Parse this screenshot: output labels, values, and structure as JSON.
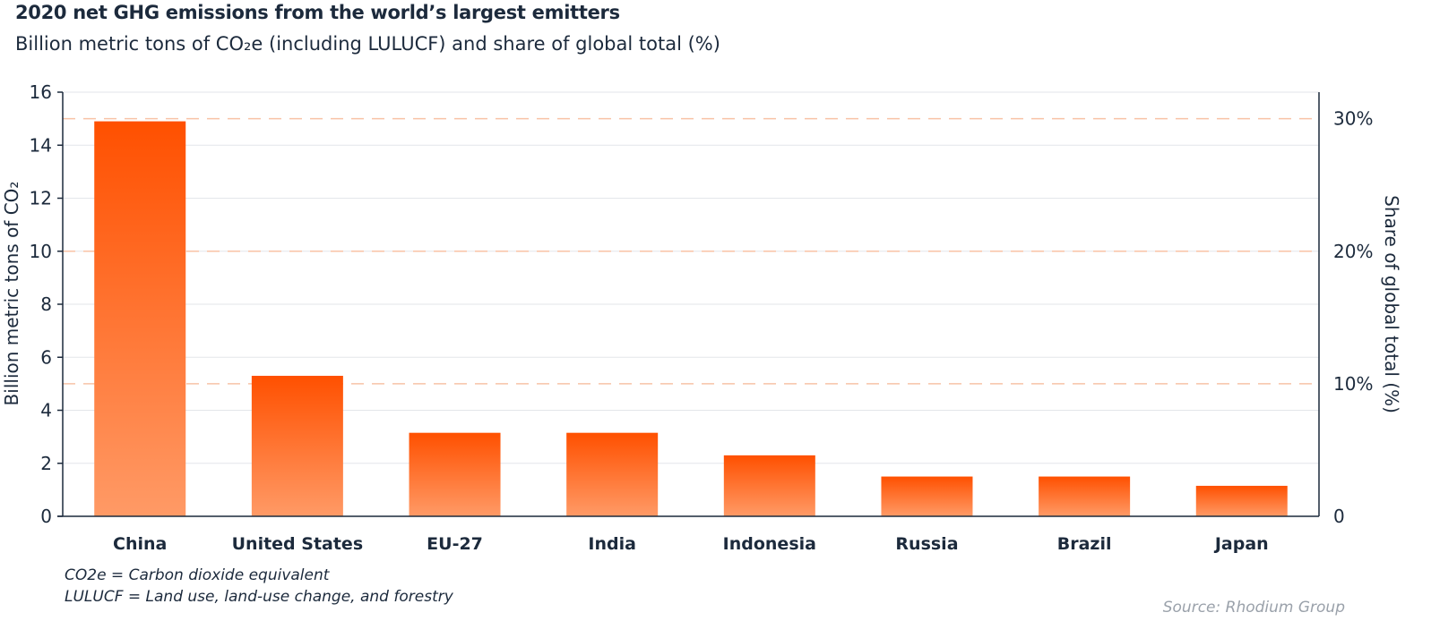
{
  "header": {
    "title": "2020 net GHG emissions from the world’s largest emitters",
    "subtitle": "Billion metric tons of CO₂e (including LULUCF) and share of global total (%)"
  },
  "notes": {
    "line1": "CO2e = Carbon dioxide equivalent",
    "line2": "LULUCF = Land use, land-use change, and forestry"
  },
  "source": "Source: Rhodium Group",
  "colors": {
    "bar_top": "#ff5000",
    "bar_bottom": "#ff9a66",
    "ref_line": "#f8c3a6",
    "grid": "#e3e6ea",
    "axis": "#1c2a3c"
  },
  "chart_data": {
    "type": "bar",
    "categories": [
      "China",
      "United States",
      "EU-27",
      "India",
      "Indonesia",
      "Russia",
      "Brazil",
      "Japan"
    ],
    "values": [
      14.9,
      5.3,
      3.15,
      3.15,
      2.3,
      1.5,
      1.5,
      1.15
    ],
    "ylabel": "Billion metric tons of CO₂",
    "ylim": [
      0,
      16
    ],
    "yticks": [
      "0",
      "2",
      "4",
      "6",
      "8",
      "10",
      "12",
      "14",
      "16"
    ],
    "y2label": "Share of global total (%)",
    "y2lim": [
      0,
      32
    ],
    "y2ticks": [
      {
        "value": 0,
        "label": "0"
      },
      {
        "value": 10,
        "label": "10%"
      },
      {
        "value": 20,
        "label": "20%"
      },
      {
        "value": 30,
        "label": "30%"
      }
    ],
    "y2_reference_lines": [
      10,
      20,
      30
    ],
    "grid": true
  }
}
